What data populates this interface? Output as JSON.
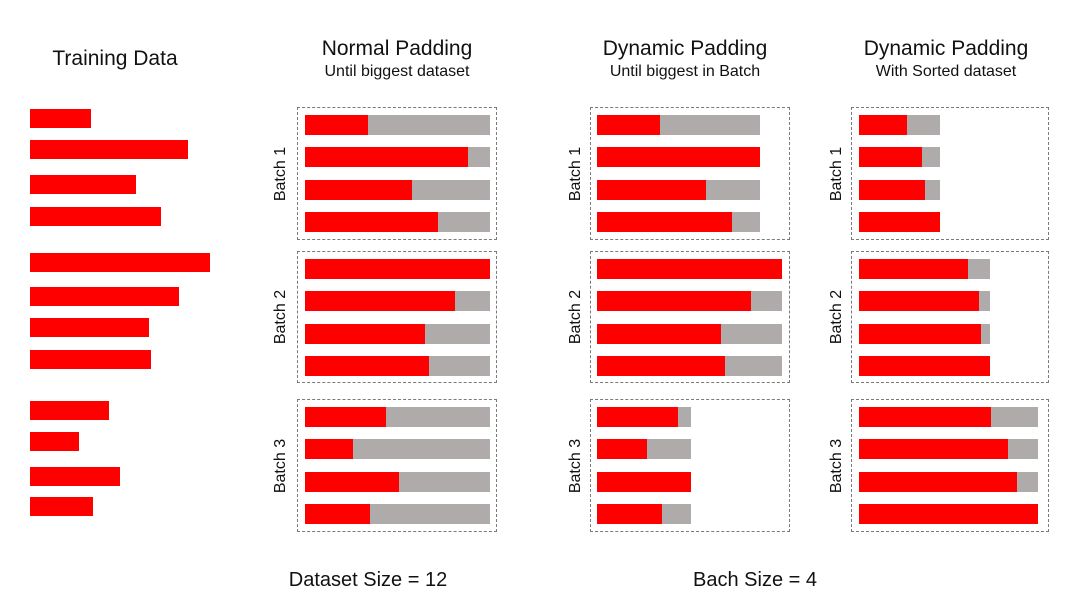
{
  "colors": {
    "data": "#ff0000",
    "padding": "#afabab",
    "border": "#7a7a7a"
  },
  "columns": {
    "training": {
      "title": "Training Data"
    },
    "normal": {
      "title": "Normal Padding",
      "subtitle": "Until biggest dataset"
    },
    "dynamic": {
      "title": "Dynamic Padding",
      "subtitle": "Until biggest in Batch"
    },
    "sorted": {
      "title": "Dynamic Padding",
      "subtitle": "With Sorted dataset"
    }
  },
  "batch_labels": [
    "Batch 1",
    "Batch 2",
    "Batch 3"
  ],
  "footer": {
    "dataset_size": "Dataset Size = 12",
    "batch_size": "Bach Size = 4"
  },
  "sample_lengths": [
    0.34,
    0.88,
    0.59,
    0.73,
    1.0,
    0.83,
    0.66,
    0.67,
    0.44,
    0.27,
    0.5,
    0.35
  ],
  "normal_padding": [
    [
      0.34,
      0.88,
      0.58,
      0.72
    ],
    [
      1.0,
      0.81,
      0.65,
      0.67
    ],
    [
      0.44,
      0.26,
      0.51,
      0.35
    ]
  ],
  "dynamic_padding": [
    {
      "padded_length": 0.88,
      "samples": [
        0.34,
        0.88,
        0.59,
        0.73
      ]
    },
    {
      "padded_length": 1.0,
      "samples": [
        1.0,
        0.83,
        0.67,
        0.69
      ]
    },
    {
      "padded_length": 0.51,
      "samples": [
        0.44,
        0.27,
        0.51,
        0.35
      ]
    }
  ],
  "sorted_padding": [
    {
      "padded_length": 0.45,
      "samples": [
        0.27,
        0.35,
        0.37,
        0.45
      ]
    },
    {
      "padded_length": 0.73,
      "samples": [
        0.61,
        0.67,
        0.68,
        0.73
      ]
    },
    {
      "padded_length": 1.0,
      "samples": [
        0.74,
        0.83,
        0.88,
        1.0
      ]
    }
  ]
}
